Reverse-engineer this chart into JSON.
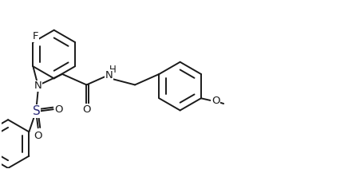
{
  "background_color": "#ffffff",
  "line_color": "#1a1a1a",
  "line_width": 1.4,
  "figsize": [
    4.26,
    2.12
  ],
  "dpi": 100,
  "xlim": [
    0,
    10
  ],
  "ylim": [
    0,
    5
  ]
}
